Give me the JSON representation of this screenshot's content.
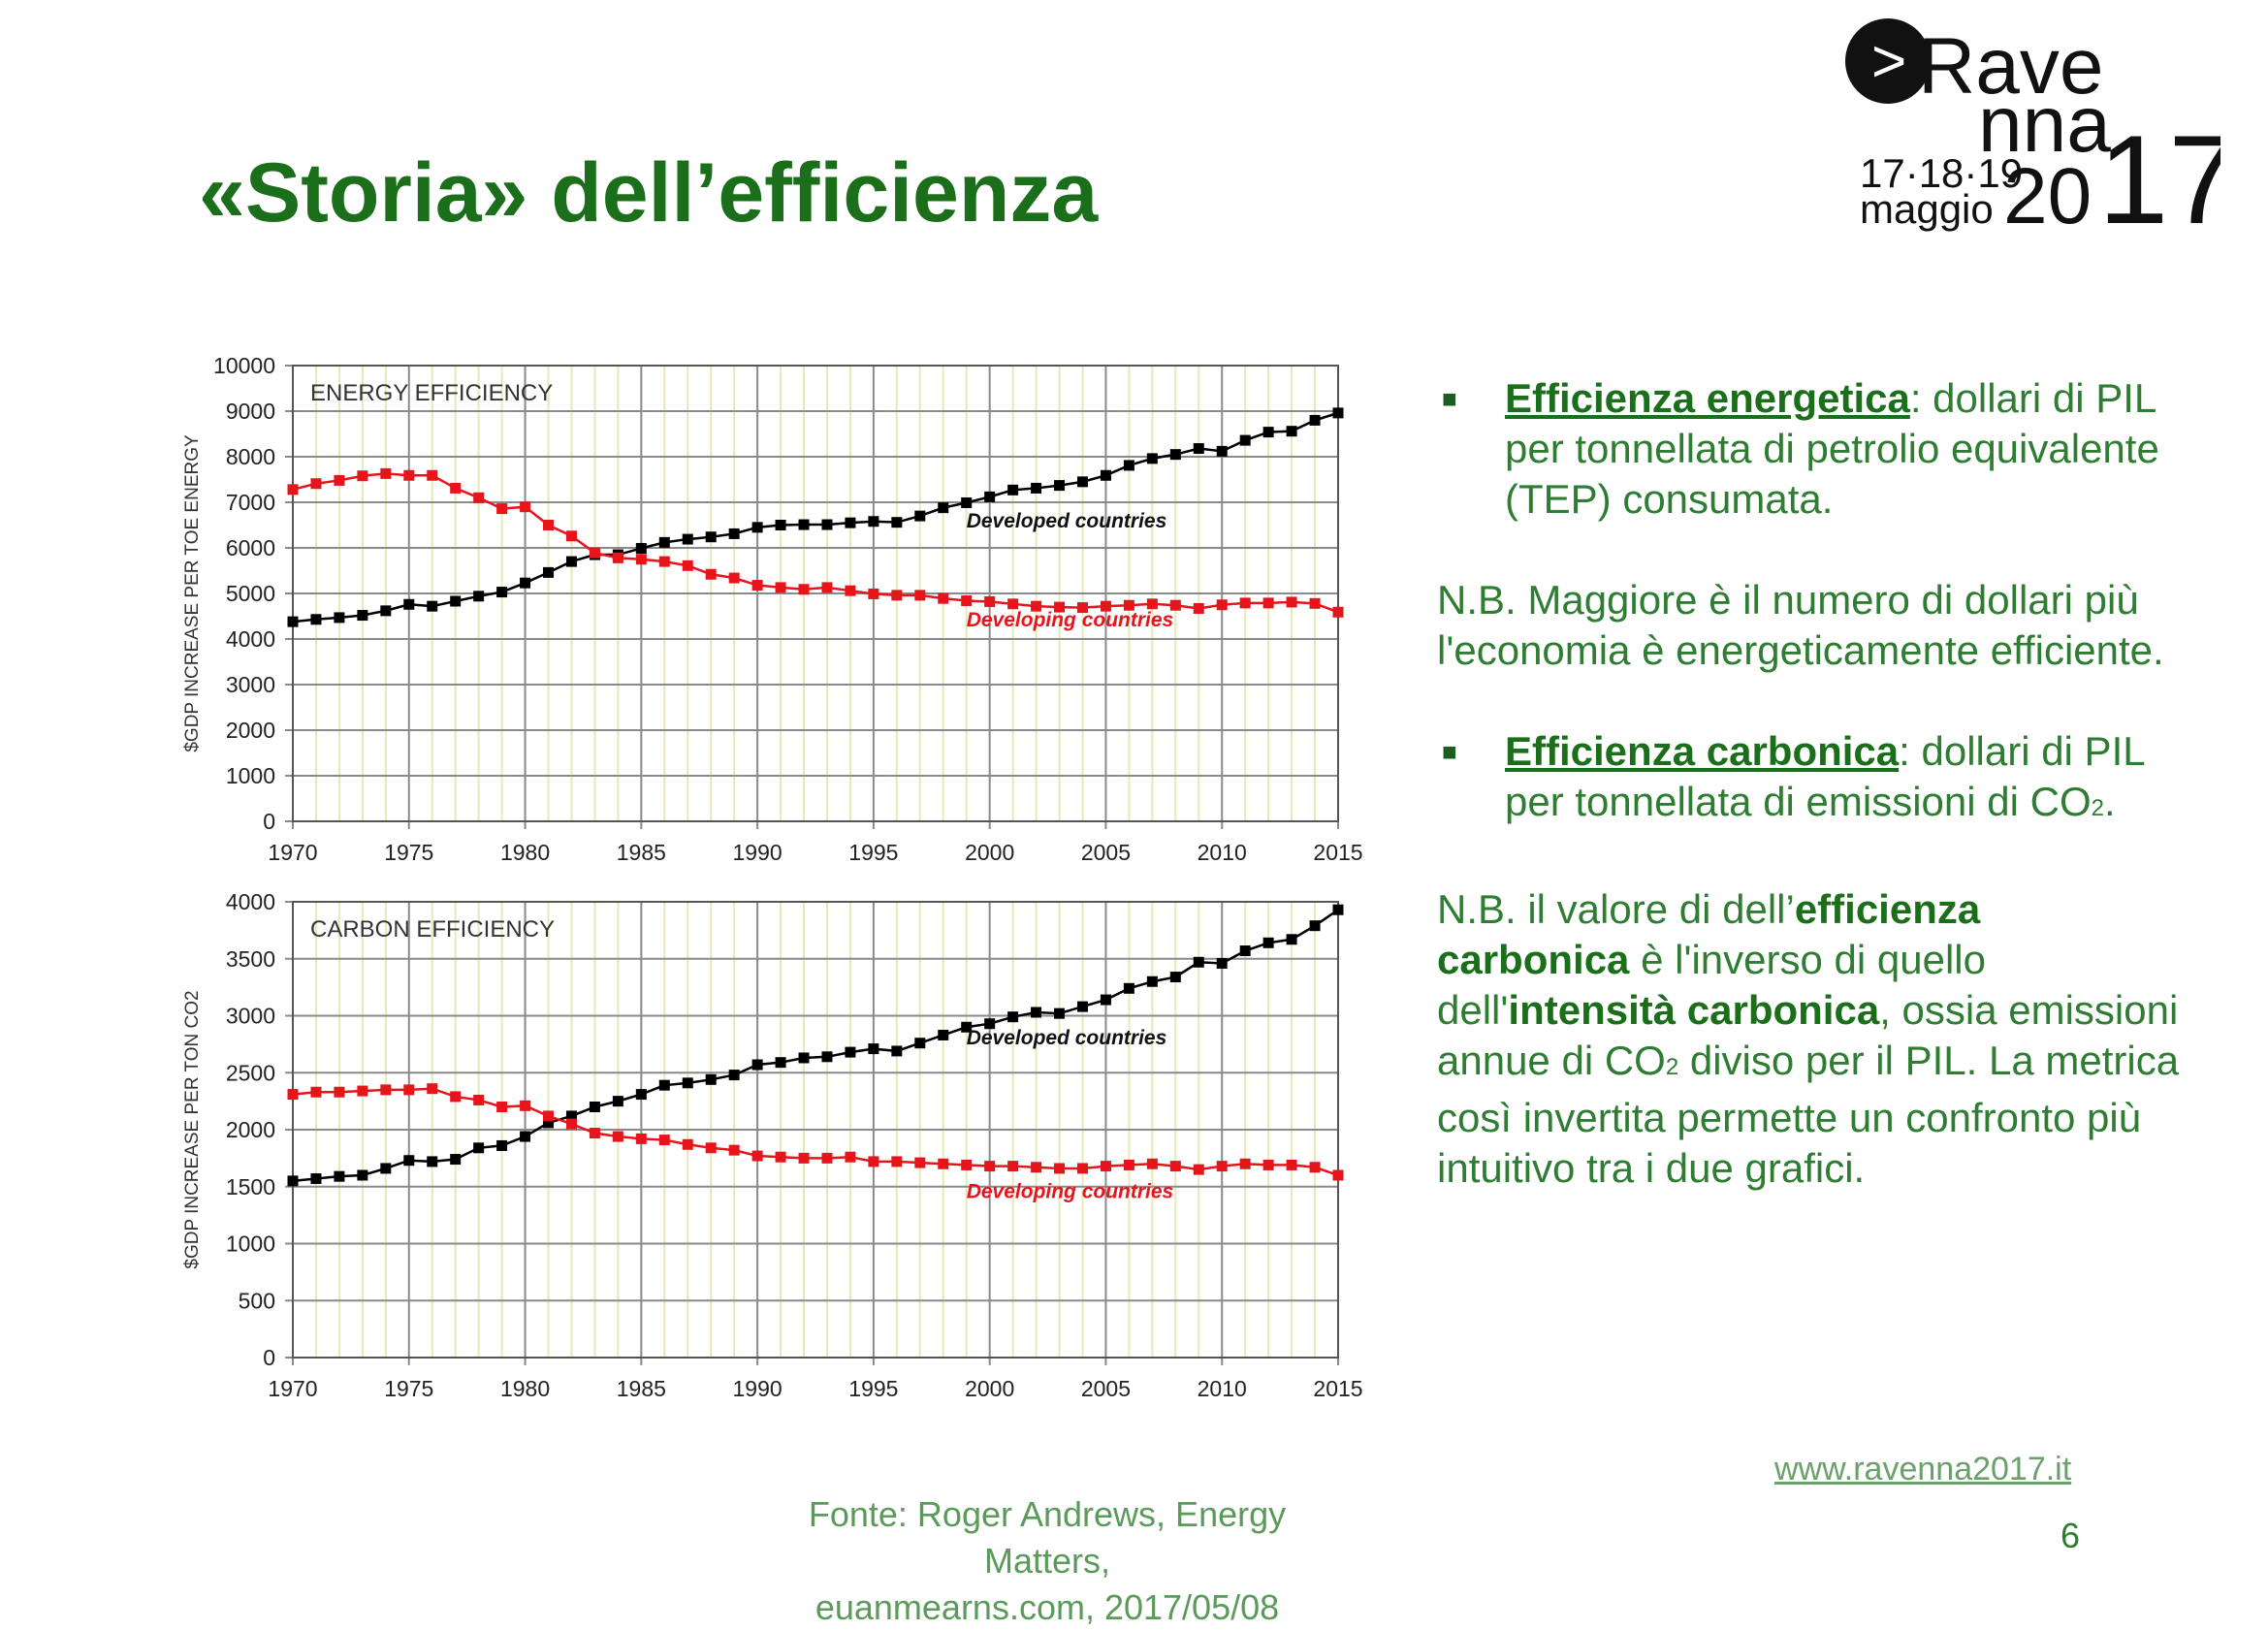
{
  "slide": {
    "title": "«Storia» dell’efficienza",
    "page_number": "6",
    "url": "www.ravenna2017.it",
    "source_line1": "Fonte: Roger Andrews, Energy Matters,",
    "source_line2": "euanmearns.com, 2017/05/08"
  },
  "logo": {
    "line1": "Rave",
    "line2": "nna",
    "dates": "17·18·19",
    "month": "maggio",
    "year_a": "20",
    "year_b": "17",
    "arrow": ">"
  },
  "text": {
    "bullet1_head": "Efficienza energetica",
    "bullet1_rest": ": dollari di PIL per tonnellata di petrolio equivalente (TEP) consumata.",
    "nb1": "N.B. Maggiore è il numero di dollari più l'economia è energeticamente efficiente.",
    "bullet2_head": "Efficienza carbonica",
    "bullet2_rest": ": dollari di PIL per tonnellata di emissioni di CO",
    "bullet2_sub": "2",
    "bullet2_end": ".",
    "nb2_a": "N.B. il valore di dell’",
    "nb2_b": "efficienza carbonica",
    "nb2_c": " è l'inverso di quello dell'",
    "nb2_d": "intensità carbonica",
    "nb2_e": ", ossia emissioni annue di CO",
    "nb2_sub": "2",
    "nb2_f": " diviso per il PIL. La metrica così invertita permette un confronto più intuitivo tra i due grafici."
  },
  "colors": {
    "title_green": "#1b6f1b",
    "developed": "#000000",
    "developing": "#e8141c",
    "grid_minor": "#e8e8b8",
    "grid_major": "#8a8a8a"
  },
  "chart_data": [
    {
      "type": "line",
      "title": "ENERGY EFFICIENCY",
      "ylabel": "$GDP INCREASE PER TOE ENERGY",
      "xlabel": "",
      "xlim": [
        1970,
        2015
      ],
      "ylim": [
        0,
        10000
      ],
      "xticks": [
        1970,
        1975,
        1980,
        1985,
        1990,
        1995,
        2000,
        2005,
        2010,
        2015
      ],
      "yticks": [
        0,
        1000,
        2000,
        3000,
        4000,
        5000,
        6000,
        7000,
        8000,
        9000,
        10000
      ],
      "x": [
        1970,
        1971,
        1972,
        1973,
        1974,
        1975,
        1976,
        1977,
        1978,
        1979,
        1980,
        1981,
        1982,
        1983,
        1984,
        1985,
        1986,
        1987,
        1988,
        1989,
        1990,
        1991,
        1992,
        1993,
        1994,
        1995,
        1996,
        1997,
        1998,
        1999,
        2000,
        2001,
        2002,
        2003,
        2004,
        2005,
        2006,
        2007,
        2008,
        2009,
        2010,
        2011,
        2012,
        2013,
        2014,
        2015
      ],
      "series": [
        {
          "name": "Developed countries",
          "color": "#000000",
          "values": [
            4380,
            4430,
            4470,
            4520,
            4620,
            4760,
            4720,
            4830,
            4940,
            5030,
            5230,
            5460,
            5700,
            5850,
            5850,
            5990,
            6120,
            6190,
            6240,
            6310,
            6450,
            6500,
            6510,
            6510,
            6550,
            6580,
            6560,
            6700,
            6880,
            6990,
            7120,
            7270,
            7310,
            7370,
            7450,
            7590,
            7810,
            7960,
            8050,
            8180,
            8120,
            8360,
            8540,
            8560,
            8800,
            8960
          ]
        },
        {
          "name": "Developing countries",
          "color": "#e8141c",
          "values": [
            7280,
            7410,
            7480,
            7580,
            7630,
            7590,
            7590,
            7310,
            7100,
            6860,
            6900,
            6500,
            6260,
            5890,
            5780,
            5750,
            5700,
            5610,
            5420,
            5340,
            5180,
            5130,
            5090,
            5130,
            5060,
            4990,
            4960,
            4960,
            4890,
            4840,
            4820,
            4770,
            4720,
            4700,
            4690,
            4720,
            4740,
            4770,
            4740,
            4670,
            4750,
            4790,
            4790,
            4810,
            4780,
            4590
          ]
        }
      ],
      "annotations": [
        "Developed countries",
        "Developing countries"
      ]
    },
    {
      "type": "line",
      "title": "CARBON EFFICIENCY",
      "ylabel": "$GDP INCREASE PER TON CO2",
      "xlabel": "",
      "xlim": [
        1970,
        2015
      ],
      "ylim": [
        0,
        4000
      ],
      "xticks": [
        1970,
        1975,
        1980,
        1985,
        1990,
        1995,
        2000,
        2005,
        2010,
        2015
      ],
      "yticks": [
        0,
        500,
        1000,
        1500,
        2000,
        2500,
        3000,
        3500,
        4000
      ],
      "x": [
        1970,
        1971,
        1972,
        1973,
        1974,
        1975,
        1976,
        1977,
        1978,
        1979,
        1980,
        1981,
        1982,
        1983,
        1984,
        1985,
        1986,
        1987,
        1988,
        1989,
        1990,
        1991,
        1992,
        1993,
        1994,
        1995,
        1996,
        1997,
        1998,
        1999,
        2000,
        2001,
        2002,
        2003,
        2004,
        2005,
        2006,
        2007,
        2008,
        2009,
        2010,
        2011,
        2012,
        2013,
        2014,
        2015
      ],
      "series": [
        {
          "name": "Developed countries",
          "color": "#000000",
          "values": [
            1550,
            1570,
            1590,
            1600,
            1660,
            1730,
            1720,
            1740,
            1840,
            1860,
            1940,
            2060,
            2120,
            2200,
            2250,
            2310,
            2390,
            2410,
            2440,
            2480,
            2570,
            2590,
            2630,
            2640,
            2680,
            2710,
            2690,
            2760,
            2830,
            2900,
            2930,
            2990,
            3030,
            3020,
            3080,
            3140,
            3240,
            3300,
            3340,
            3470,
            3460,
            3570,
            3640,
            3670,
            3790,
            3930
          ]
        },
        {
          "name": "Developing countries",
          "color": "#e8141c",
          "values": [
            2310,
            2330,
            2330,
            2340,
            2350,
            2350,
            2360,
            2290,
            2260,
            2200,
            2210,
            2120,
            2050,
            1970,
            1940,
            1920,
            1910,
            1870,
            1840,
            1820,
            1770,
            1760,
            1750,
            1750,
            1760,
            1720,
            1720,
            1710,
            1700,
            1690,
            1680,
            1680,
            1670,
            1660,
            1660,
            1680,
            1690,
            1700,
            1680,
            1650,
            1680,
            1700,
            1690,
            1690,
            1670,
            1600
          ]
        }
      ],
      "annotations": [
        "Developed countries",
        "Developing countries"
      ]
    }
  ]
}
